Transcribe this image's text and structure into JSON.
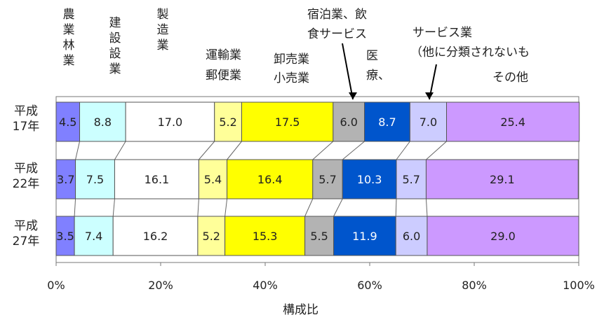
{
  "chart_data": {
    "type": "bar",
    "orientation": "horizontal",
    "stacked": "percent",
    "xlabel": "構成比",
    "xlim": [
      0,
      100
    ],
    "x_ticks": [
      "0%",
      "20%",
      "40%",
      "60%",
      "80%",
      "100%"
    ],
    "row_labels": [
      {
        "line1": "平成",
        "line2": "17年"
      },
      {
        "line1": "平成",
        "line2": "22年"
      },
      {
        "line1": "平成",
        "line2": "27年"
      }
    ],
    "series": [
      {
        "name": "農業林業",
        "color": "#8080ff",
        "values": [
          4.5,
          3.7,
          3.5
        ],
        "labels": [
          "4.5",
          "3.7",
          "3.5"
        ]
      },
      {
        "name": "建設業",
        "color": "#ccffff",
        "values": [
          8.8,
          7.5,
          7.4
        ],
        "labels": [
          "8.8",
          "7.5",
          "7.4"
        ]
      },
      {
        "name": "製造業",
        "color": "#ffffff",
        "values": [
          17.0,
          16.1,
          16.2
        ],
        "labels": [
          "17.0",
          "16.1",
          "16.2"
        ]
      },
      {
        "name": "運輸業郵便業",
        "color": "#ffff99",
        "values": [
          5.2,
          5.4,
          5.2
        ],
        "labels": [
          "5.2",
          "5.4",
          "5.2"
        ]
      },
      {
        "name": "卸売業小売業",
        "color": "#ffff00",
        "values": [
          17.5,
          16.4,
          15.3
        ],
        "labels": [
          "17.5",
          "16.4",
          "15.3"
        ]
      },
      {
        "name": "宿泊業、飲食サービス",
        "color": "#b3b3b3",
        "values": [
          6.0,
          5.7,
          5.5
        ],
        "labels": [
          "6.0",
          "5.7",
          "5.5"
        ]
      },
      {
        "name": "医療、",
        "color": "#0055cc",
        "values": [
          8.7,
          10.3,
          11.9
        ],
        "labels": [
          "8.7",
          "10.3",
          "11.9"
        ]
      },
      {
        "name": "サービス業（他に分類されないもの）",
        "color": "#ccccff",
        "values": [
          7.0,
          5.7,
          6.0
        ],
        "labels": [
          "7.0",
          "5.7",
          "6.0"
        ]
      },
      {
        "name": "その他",
        "color": "#cc99ff",
        "values": [
          25.4,
          29.1,
          29.0
        ],
        "labels": [
          "25.4",
          "29.1",
          "29.0"
        ]
      }
    ],
    "header_labels": {
      "agri": "農業林業",
      "construction": "建設設業",
      "manufacturing": "製造業",
      "transport_1": "運輸業",
      "transport_2": "郵便業",
      "retail_1": "卸売業",
      "retail_2": "小売業",
      "hotel_1": "宿泊業、飲",
      "hotel_2": "食サービス",
      "medical": "医療、",
      "service_1": "サービス業",
      "service_2": "（他に分類されないも",
      "other": "その他"
    }
  }
}
